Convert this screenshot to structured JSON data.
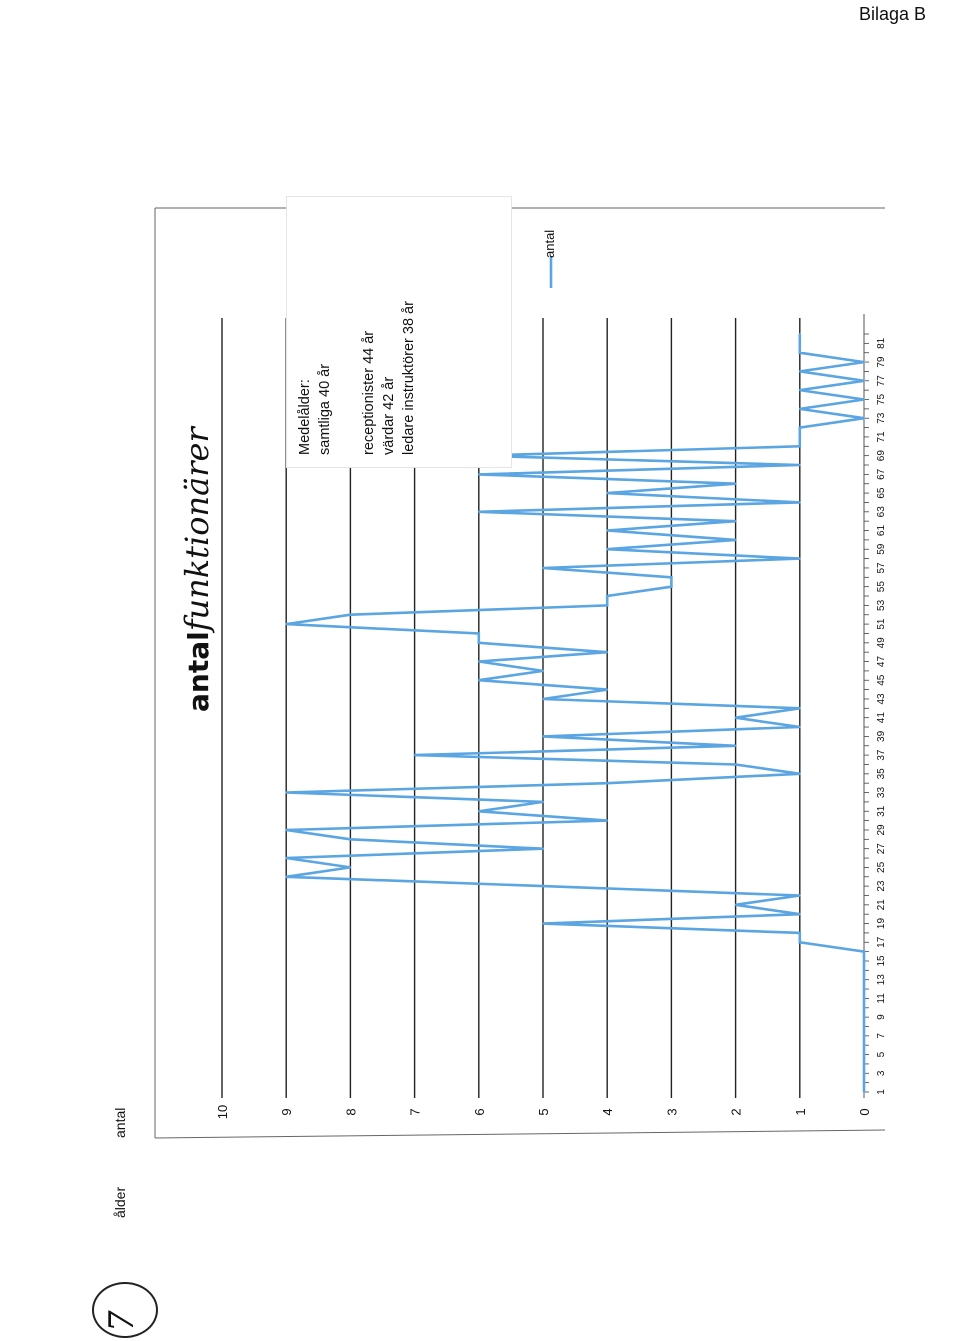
{
  "page": {
    "annotation": "Bilaga B",
    "circled_number": "7"
  },
  "headers": {
    "ylabel": "antal",
    "xlabel": "ålder"
  },
  "title": {
    "typed": "antal",
    "handwritten": "funktionärer"
  },
  "note": {
    "line1": "Medelålder:",
    "line2": "samtliga 40 år",
    "line3": "receptionister 44 år",
    "line4": "värdar  42 år",
    "line5": "ledare instruktörer  38 år"
  },
  "chart_data": {
    "type": "line",
    "orientation": "rotated-90-ccw",
    "series": [
      {
        "name": "antal",
        "color": "#5aa5e2",
        "values": [
          0,
          0,
          0,
          0,
          0,
          0,
          0,
          0,
          0,
          0,
          0,
          0,
          0,
          0,
          0,
          0,
          1,
          1,
          5,
          1,
          2,
          1,
          5,
          9,
          8,
          9,
          5,
          8,
          9,
          4,
          6,
          5,
          9,
          4,
          1,
          2,
          7,
          2,
          5,
          1,
          2,
          1,
          5,
          4,
          6,
          5,
          6,
          4,
          6,
          6,
          9,
          8,
          4,
          4,
          3,
          3,
          5,
          1,
          4,
          2,
          4,
          2,
          6,
          1,
          4,
          2,
          6,
          1,
          6,
          1,
          1,
          1,
          0,
          1,
          0,
          1,
          0,
          1,
          0,
          1,
          1,
          1
        ]
      }
    ],
    "x": [
      1,
      2,
      3,
      4,
      5,
      6,
      7,
      8,
      9,
      10,
      11,
      12,
      13,
      14,
      15,
      16,
      17,
      18,
      19,
      20,
      21,
      22,
      23,
      24,
      25,
      26,
      27,
      28,
      29,
      30,
      31,
      32,
      33,
      34,
      35,
      36,
      37,
      38,
      39,
      40,
      41,
      42,
      43,
      44,
      45,
      46,
      47,
      48,
      49,
      50,
      51,
      52,
      53,
      54,
      55,
      56,
      57,
      58,
      59,
      60,
      61,
      62,
      63,
      64,
      65,
      66,
      67,
      68,
      69,
      70,
      71,
      72,
      73,
      74,
      75,
      76,
      77,
      78,
      79,
      80,
      81,
      82
    ],
    "x_tick_labels": [
      "1",
      "3",
      "5",
      "7",
      "9",
      "11",
      "13",
      "15",
      "17",
      "19",
      "21",
      "23",
      "25",
      "27",
      "29",
      "31",
      "33",
      "35",
      "37",
      "39",
      "41",
      "43",
      "45",
      "47",
      "49",
      "51",
      "53",
      "55",
      "57",
      "59",
      "61",
      "63",
      "65",
      "67",
      "69",
      "71",
      "73",
      "75",
      "77",
      "79",
      "81"
    ],
    "y_ticks": [
      "0",
      "1",
      "2",
      "3",
      "4",
      "5",
      "6",
      "7",
      "8",
      "9",
      "10"
    ],
    "ylim": [
      0,
      10
    ],
    "grid": true,
    "legend": "right"
  }
}
